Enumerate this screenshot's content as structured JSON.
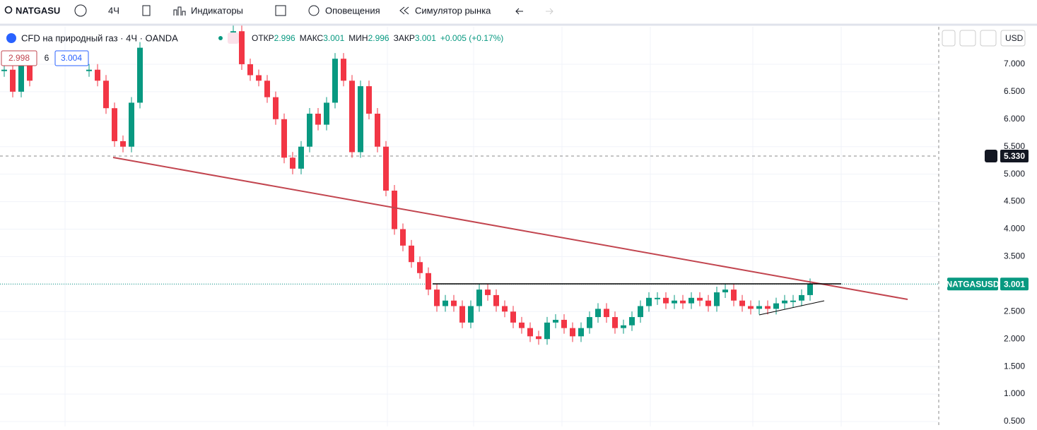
{
  "toolbar": {
    "symbol": "NATGASU",
    "interval": "4Ч",
    "indicators": "Индикаторы",
    "alerts": "Оповещения",
    "replay": "Симулятор рынка"
  },
  "legend": {
    "title": "CFD на природный газ · 4Ч · OANDA",
    "open_label": "ОТКР",
    "open": "2.996",
    "high_label": "МАКС",
    "high": "3.001",
    "low_label": "МИН",
    "low": "2.996",
    "close_label": "ЗАКР",
    "close": "3.001",
    "change": "+0.005 (+0.17%)",
    "bid": "2.998",
    "spread": "6",
    "ask": "3.004"
  },
  "price_axis": {
    "currency": "USD",
    "ylim": [
      0.41,
      7.68
    ],
    "yticks": [
      {
        "value": 0.5,
        "label": "0.500"
      },
      {
        "value": 1,
        "label": "1.000"
      },
      {
        "value": 1.5,
        "label": "1.500"
      },
      {
        "value": 2,
        "label": "2.000"
      },
      {
        "value": 2.5,
        "label": "2.500"
      },
      {
        "value": 3,
        "label": "3.000"
      },
      {
        "value": 3.5,
        "label": "3.500"
      },
      {
        "value": 4,
        "label": "4.000"
      },
      {
        "value": 4.5,
        "label": "4.500"
      },
      {
        "value": 5,
        "label": "5.000"
      },
      {
        "value": 5.5,
        "label": "5.500"
      },
      {
        "value": 6,
        "label": "6.000"
      },
      {
        "value": 6.5,
        "label": "6.500"
      },
      {
        "value": 7,
        "label": "7.000"
      }
    ],
    "crosshair": {
      "value": 5.33,
      "label": "5.330"
    },
    "last": {
      "name": "NATGASUSD",
      "value": 3.001,
      "label": "3.001"
    }
  },
  "closes": [
    6.9,
    6.5,
    7.0,
    6.7,
    null,
    null,
    null,
    null,
    null,
    null,
    6.9,
    6.7,
    6.2,
    5.6,
    5.5,
    6.3,
    7.3,
    null,
    null,
    null,
    null,
    null,
    null,
    null,
    null,
    null,
    null,
    7.6,
    7.0,
    6.8,
    6.7,
    6.4,
    6.0,
    5.3,
    5.1,
    5.5,
    6.1,
    5.9,
    6.3,
    7.1,
    6.7,
    5.4,
    6.6,
    6.1,
    5.5,
    4.7,
    4.0,
    3.7,
    3.4,
    3.2,
    2.9,
    2.6,
    2.7,
    2.6,
    2.3,
    2.6,
    2.9,
    2.8,
    2.6,
    2.5,
    2.3,
    2.2,
    2.05,
    2.0,
    2.3,
    2.35,
    2.2,
    2.05,
    2.2,
    2.4,
    2.55,
    2.4,
    2.2,
    2.25,
    2.4,
    2.6,
    2.75,
    2.75,
    2.65,
    2.7,
    2.65,
    2.75,
    2.7,
    2.6,
    2.85,
    2.9,
    2.7,
    2.6,
    2.55,
    2.6,
    2.55,
    2.65,
    2.7,
    2.7,
    2.8,
    3.0
  ]
}
